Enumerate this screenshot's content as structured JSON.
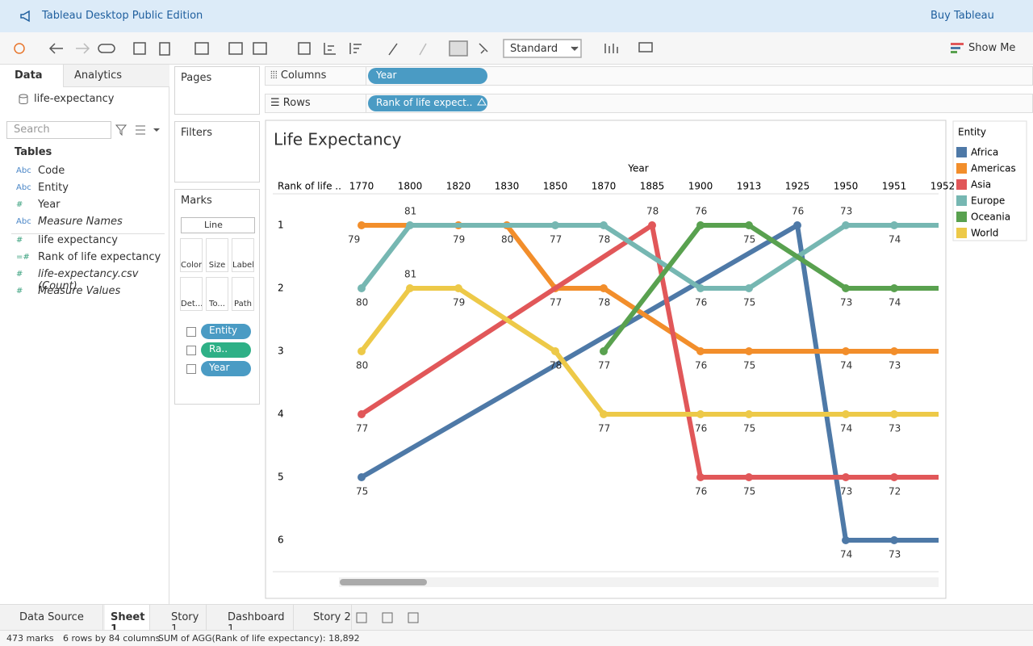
{
  "header": {
    "title": "Tableau Desktop Public Edition",
    "action": "Buy Tableau"
  },
  "toolbar": {
    "fit": "Standard",
    "show_me": "Show Me"
  },
  "data_pane": {
    "tabs": [
      "Data",
      "Analytics"
    ],
    "source": "life-expectancy",
    "search": "Search",
    "tables": "Tables",
    "fields": [
      {
        "icon": "Abc",
        "name": "Code"
      },
      {
        "icon": "Abc",
        "name": "Entity"
      },
      {
        "icon": "#",
        "name": "Year"
      },
      {
        "icon": "Abc",
        "name": "Measure Names"
      },
      {
        "icon": "#",
        "name": "life expectancy"
      },
      {
        "icon": "=#",
        "name": "Rank of life expectancy"
      },
      {
        "icon": "#",
        "name": "life-expectancy.csv (Count)"
      },
      {
        "icon": "#",
        "name": "Measure Values"
      }
    ]
  },
  "shelves": {
    "pages": "Pages",
    "filters": "Filters",
    "marks": "Marks",
    "mark_type": "Line",
    "mark_buttons": [
      "Color",
      "Size",
      "Label",
      "Det...",
      "To...",
      "Path"
    ],
    "mark_pills": [
      "Entity",
      "Ra..",
      "Year"
    ],
    "columns": "Columns",
    "columns_pill": "Year",
    "rows": "Rows",
    "rows_pill": "Rank of life expect.."
  },
  "chart_data": {
    "type": "line",
    "title": "Life Expectancy",
    "x_label": "Year",
    "y_label": "Rank of life ..",
    "categories": [
      "1770",
      "1800",
      "1820",
      "1830",
      "1850",
      "1870",
      "1885",
      "1900",
      "1913",
      "1925",
      "1950",
      "1951",
      "1952"
    ],
    "ylim": [
      0.5,
      6.5
    ],
    "yticks": [
      1,
      2,
      3,
      4,
      5,
      6
    ],
    "y_reversed": true,
    "legend_title": "Entity",
    "series": [
      {
        "name": "Africa",
        "color": "#4e79a7",
        "x": [
          "1770",
          "1925",
          "1950",
          "1951",
          "1952"
        ],
        "values": [
          5,
          1,
          6,
          6,
          6
        ],
        "life_expectancy": [
          75,
          76,
          74,
          73,
          null
        ]
      },
      {
        "name": "Americas",
        "color": "#f28e2b",
        "x": [
          "1770",
          "1820",
          "1830",
          "1850",
          "1870",
          "1900",
          "1913",
          "1950",
          "1951",
          "1952"
        ],
        "values": [
          1,
          1,
          1,
          2,
          2,
          3,
          3,
          3,
          3,
          3
        ],
        "life_expectancy": [
          79,
          79,
          80,
          77,
          78,
          76,
          75,
          74,
          73,
          null
        ]
      },
      {
        "name": "Asia",
        "color": "#e15759",
        "x": [
          "1770",
          "1885",
          "1900",
          "1913",
          "1950",
          "1951",
          "1952"
        ],
        "values": [
          4,
          1,
          5,
          5,
          5,
          5,
          5
        ],
        "life_expectancy": [
          77,
          78,
          76,
          75,
          73,
          72,
          null
        ]
      },
      {
        "name": "Europe",
        "color": "#76b7b2",
        "x": [
          "1770",
          "1800",
          "1850",
          "1870",
          "1900",
          "1913",
          "1950",
          "1951",
          "1952"
        ],
        "values": [
          2,
          1,
          1,
          1,
          2,
          2,
          1,
          1,
          1
        ],
        "life_expectancy": [
          80,
          81,
          77,
          78,
          76,
          75,
          73,
          74,
          null
        ]
      },
      {
        "name": "Oceania",
        "color": "#59a14f",
        "x": [
          "1870",
          "1900",
          "1913",
          "1950",
          "1951",
          "1952"
        ],
        "values": [
          3,
          1,
          1,
          2,
          2,
          2
        ],
        "life_expectancy": [
          77,
          76,
          75,
          73,
          74,
          null
        ]
      },
      {
        "name": "World",
        "color": "#edc948",
        "x": [
          "1770",
          "1800",
          "1820",
          "1850",
          "1870",
          "1900",
          "1913",
          "1950",
          "1951",
          "1952"
        ],
        "values": [
          3,
          2,
          2,
          3,
          4,
          4,
          4,
          4,
          4,
          4
        ],
        "life_expectancy": [
          80,
          81,
          79,
          78,
          77,
          76,
          75,
          74,
          73,
          null
        ]
      }
    ]
  },
  "tabs": [
    "Data Source",
    "Sheet 1",
    "Story 1",
    "Dashboard 1",
    "Story 2"
  ],
  "status": [
    "473 marks",
    "6 rows by 84 columns",
    "SUM of AGG(Rank of life expectancy): 18,892"
  ]
}
